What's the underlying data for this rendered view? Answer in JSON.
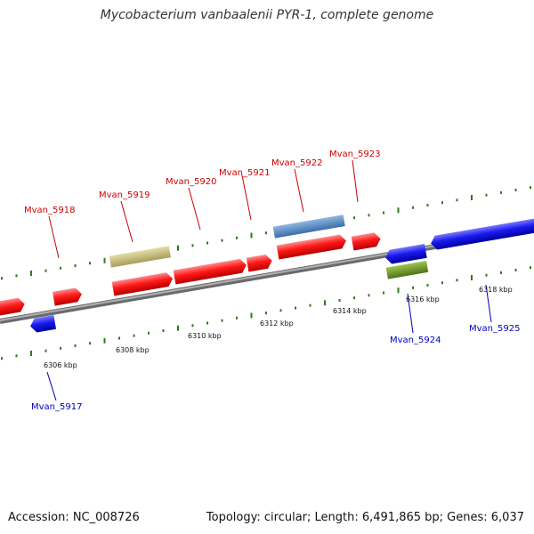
{
  "title": "Mycobacterium vanbaalenii PYR-1, complete genome",
  "footer": {
    "accession": "Accession: NC_008726",
    "topology": "Topology: circular; Length: 6,491,865 bp; Genes: 6,037"
  },
  "colors": {
    "forward_gene": "#ff1a1a",
    "reverse_gene": "#1a1aee",
    "forward_label": "#cc0000",
    "reverse_label": "#0000bb",
    "tick": "#2f7a1a",
    "backbone": "#8a8a8a",
    "khaki_feature": "#c8be7a",
    "steelblue_feature": "#5a8fc8",
    "olive_feature": "#6f9a2a"
  },
  "scale": {
    "unit": "kbp",
    "tick_labels": [
      "6306 kbp",
      "6308 kbp",
      "6310 kbp",
      "6312 kbp",
      "6314 kbp",
      "6316 kbp",
      "6318 kbp"
    ]
  },
  "genes": [
    {
      "id": "Mvan_5917",
      "strand": "reverse"
    },
    {
      "id": "Mvan_5918",
      "strand": "forward"
    },
    {
      "id": "Mvan_5919",
      "strand": "forward"
    },
    {
      "id": "Mvan_5920",
      "strand": "forward"
    },
    {
      "id": "Mvan_5921",
      "strand": "forward"
    },
    {
      "id": "Mvan_5922",
      "strand": "forward"
    },
    {
      "id": "Mvan_5923",
      "strand": "forward"
    },
    {
      "id": "Mvan_5924",
      "strand": "reverse"
    },
    {
      "id": "Mvan_5925",
      "strand": "reverse"
    }
  ]
}
